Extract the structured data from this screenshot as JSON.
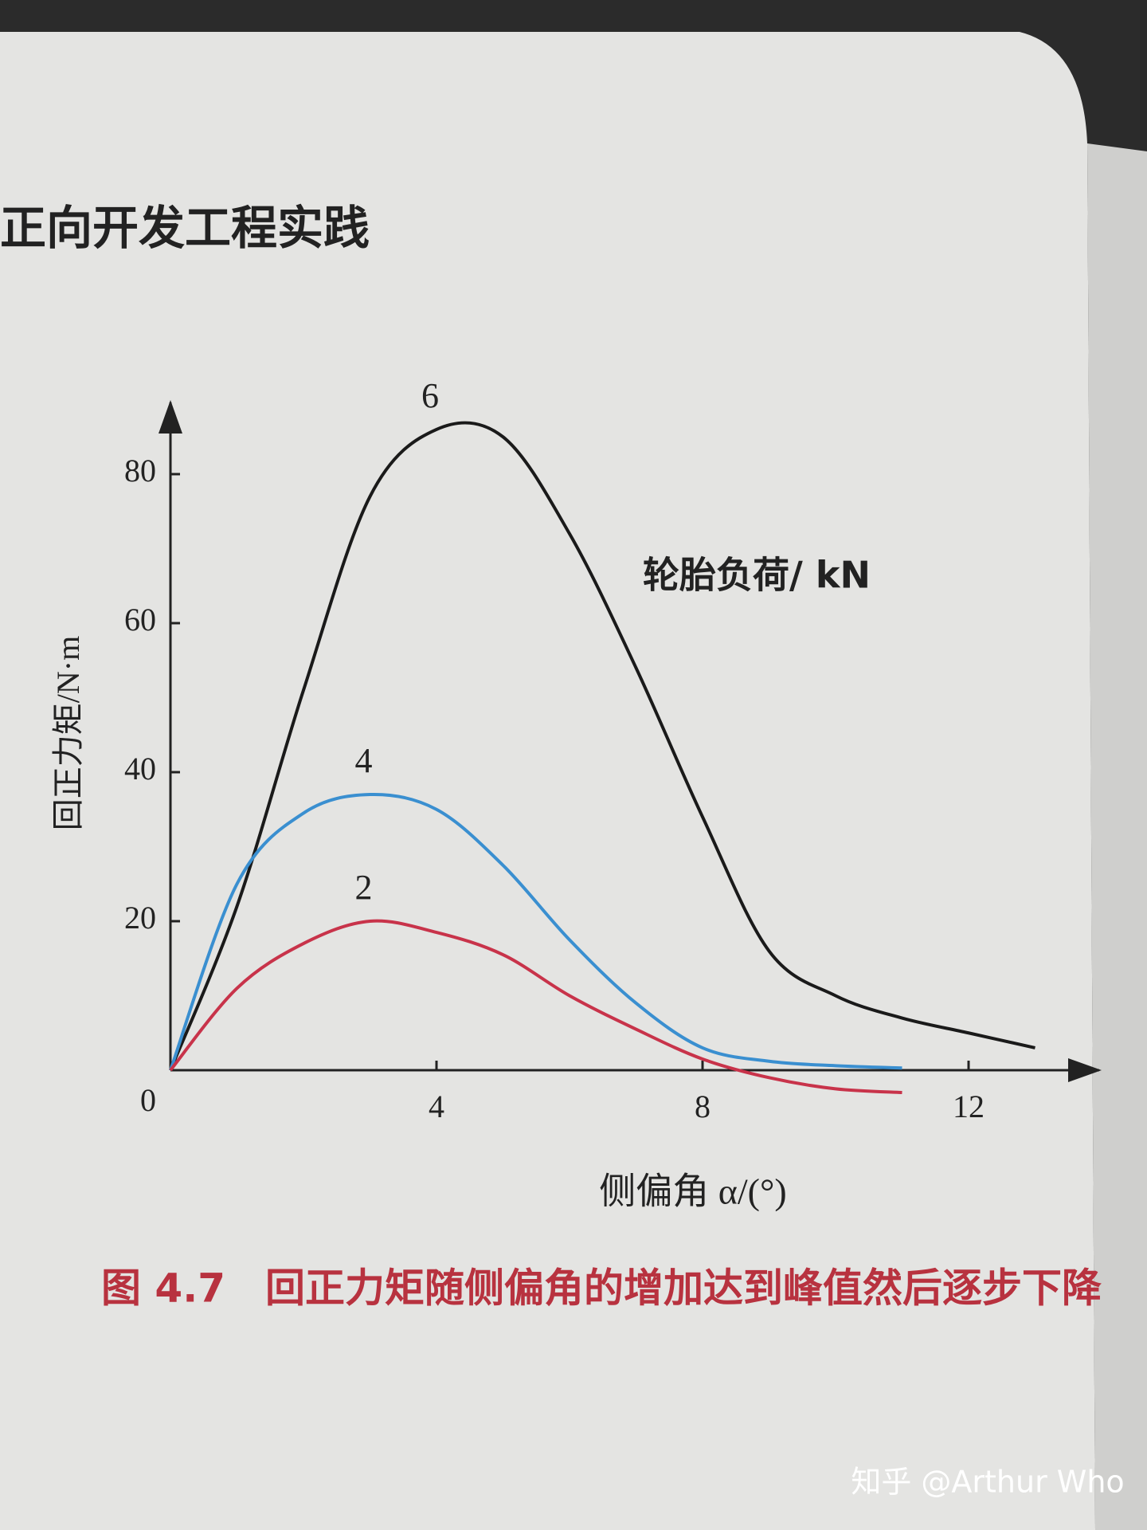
{
  "chart_data": {
    "type": "line",
    "header": "正向开发工程实践",
    "xlabel": "侧偏角 α/(°)",
    "ylabel": "回正力矩/N·m",
    "annotation": "轮胎负荷/ kN",
    "caption": "图 4.7　回正力矩随侧偏角的增加达到峰值然后逐步下降",
    "watermark": "知乎 @Arthur Who",
    "xlim": [
      0,
      13.5
    ],
    "ylim": [
      0,
      90
    ],
    "xticks": [
      4,
      8,
      12
    ],
    "yticks": [
      0,
      20,
      40,
      60,
      80
    ],
    "series": [
      {
        "name": "6",
        "color": "#1a1a1a",
        "x": [
          0,
          1,
          2,
          3,
          4,
          5,
          6,
          7,
          8,
          9,
          10,
          11,
          12,
          13
        ],
        "values": [
          0,
          22,
          51,
          77,
          86,
          85,
          72,
          54,
          34,
          16,
          10,
          7,
          5,
          3
        ]
      },
      {
        "name": "4",
        "color": "#3a8fd0",
        "x": [
          0,
          1,
          2,
          3,
          4,
          5,
          6,
          7,
          8,
          9,
          10,
          11
        ],
        "values": [
          0,
          25,
          34.5,
          37,
          35,
          27.5,
          17.5,
          9,
          3,
          1.2,
          0.6,
          0.3
        ]
      },
      {
        "name": "2",
        "color": "#c8334a",
        "x": [
          0,
          1,
          2,
          3,
          4,
          5,
          6,
          7,
          8,
          9,
          10,
          11
        ],
        "values": [
          0,
          11,
          17,
          20,
          18.5,
          15.5,
          10,
          5.5,
          1.5,
          -1,
          -2.5,
          -3
        ]
      }
    ]
  }
}
